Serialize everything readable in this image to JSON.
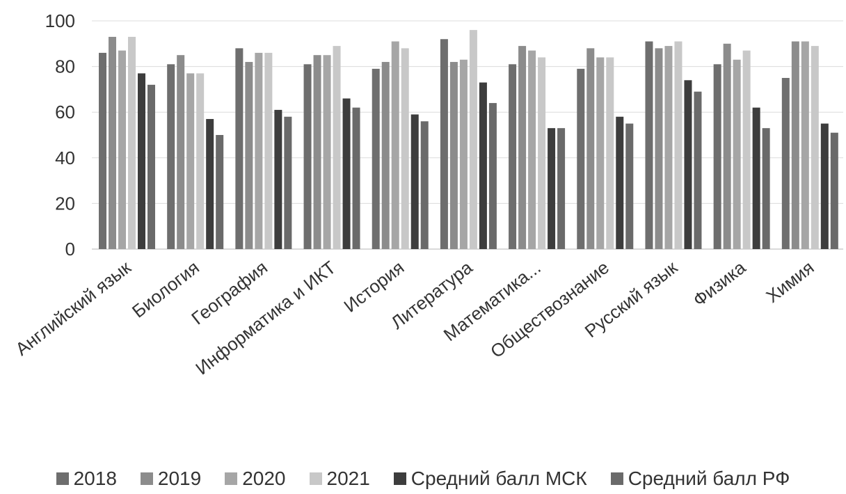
{
  "chart_data": {
    "type": "bar",
    "title": "",
    "xlabel": "",
    "ylabel": "",
    "ylim": [
      0,
      100
    ],
    "yticks": [
      0,
      20,
      40,
      60,
      80,
      100
    ],
    "grid": true,
    "legend_position": "bottom",
    "categories": [
      "Английский язык",
      "Биология",
      "География",
      "Информатика и ИКТ",
      "История",
      "Литература",
      "Математика...",
      "Обществознание",
      "Русский язык",
      "Физика",
      "Химия"
    ],
    "series": [
      {
        "name": "2018",
        "color": "#6e6e6e",
        "values": [
          86,
          81,
          88,
          81,
          79,
          92,
          81,
          79,
          91,
          81,
          75
        ]
      },
      {
        "name": "2019",
        "color": "#8c8c8c",
        "values": [
          93,
          85,
          82,
          85,
          82,
          82,
          89,
          88,
          88,
          90,
          91
        ]
      },
      {
        "name": "2020",
        "color": "#a6a6a6",
        "values": [
          87,
          77,
          86,
          85,
          91,
          83,
          87,
          84,
          89,
          83,
          91
        ]
      },
      {
        "name": "2021",
        "color": "#c8c8c8",
        "values": [
          93,
          77,
          86,
          89,
          88,
          96,
          84,
          84,
          91,
          87,
          89
        ]
      },
      {
        "name": "Средний балл МСК",
        "color": "#3d3d3d",
        "values": [
          77,
          57,
          61,
          66,
          59,
          73,
          53,
          58,
          74,
          62,
          55
        ]
      },
      {
        "name": "Средний балл РФ",
        "color": "#6a6a6a",
        "values": [
          72,
          50,
          58,
          62,
          56,
          64,
          53,
          55,
          69,
          53,
          51
        ]
      }
    ]
  }
}
